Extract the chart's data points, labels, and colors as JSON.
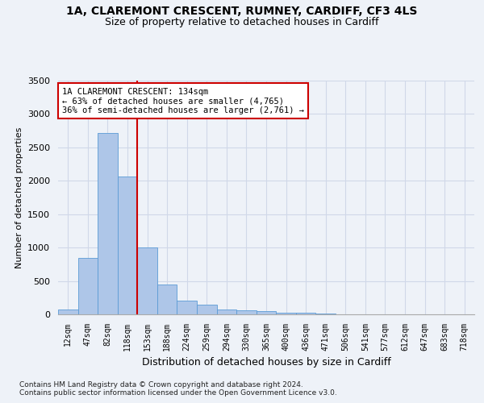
{
  "title_line1": "1A, CLAREMONT CRESCENT, RUMNEY, CARDIFF, CF3 4LS",
  "title_line2": "Size of property relative to detached houses in Cardiff",
  "xlabel": "Distribution of detached houses by size in Cardiff",
  "ylabel": "Number of detached properties",
  "footer_line1": "Contains HM Land Registry data © Crown copyright and database right 2024.",
  "footer_line2": "Contains public sector information licensed under the Open Government Licence v3.0.",
  "categories": [
    "12sqm",
    "47sqm",
    "82sqm",
    "118sqm",
    "153sqm",
    "188sqm",
    "224sqm",
    "259sqm",
    "294sqm",
    "330sqm",
    "365sqm",
    "400sqm",
    "436sqm",
    "471sqm",
    "506sqm",
    "541sqm",
    "577sqm",
    "612sqm",
    "647sqm",
    "683sqm",
    "718sqm"
  ],
  "values": [
    75,
    840,
    2720,
    2060,
    1000,
    450,
    210,
    140,
    75,
    55,
    50,
    30,
    20,
    10,
    5,
    3,
    2,
    1,
    1,
    1,
    0
  ],
  "bar_color": "#aec6e8",
  "bar_edge_color": "#5b9bd5",
  "grid_color": "#d0d8e8",
  "vline_color": "#cc0000",
  "annotation_text": "1A CLAREMONT CRESCENT: 134sqm\n← 63% of detached houses are smaller (4,765)\n36% of semi-detached houses are larger (2,761) →",
  "annotation_box_color": "#ffffff",
  "annotation_box_edge": "#cc0000",
  "ylim": [
    0,
    3500
  ],
  "yticks": [
    0,
    500,
    1000,
    1500,
    2000,
    2500,
    3000,
    3500
  ],
  "background_color": "#eef2f8"
}
